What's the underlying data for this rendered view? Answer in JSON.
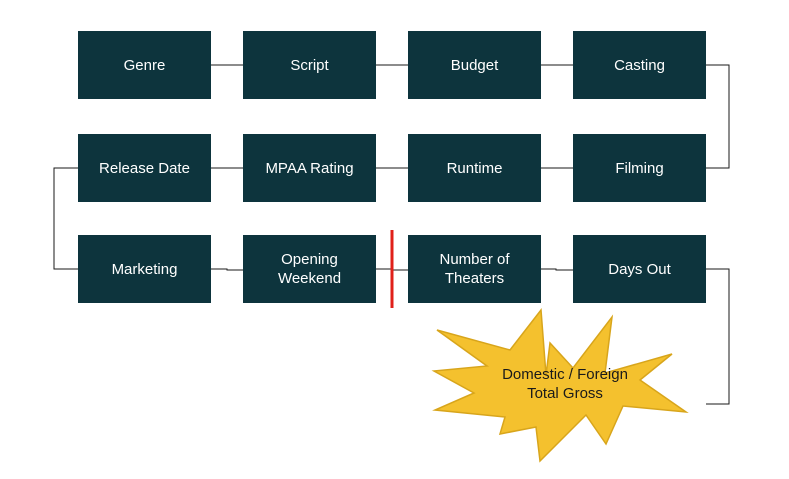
{
  "diagram": {
    "nodes": [
      {
        "id": "genre",
        "label": "Genre"
      },
      {
        "id": "script",
        "label": "Script"
      },
      {
        "id": "budget",
        "label": "Budget"
      },
      {
        "id": "casting",
        "label": "Casting"
      },
      {
        "id": "filming",
        "label": "Filming"
      },
      {
        "id": "runtime",
        "label": "Runtime"
      },
      {
        "id": "mpaa-rating",
        "label": "MPAA Rating"
      },
      {
        "id": "release-date",
        "label": "Release Date"
      },
      {
        "id": "marketing",
        "label": "Marketing"
      },
      {
        "id": "opening-weekend",
        "label": "Opening\nWeekend"
      },
      {
        "id": "number-of-theaters",
        "label": "Number of\nTheaters"
      },
      {
        "id": "days-out",
        "label": "Days Out"
      }
    ],
    "outcome": {
      "line1": "Domestic / Foreign",
      "line2": "Total Gross"
    },
    "edges": [
      [
        "genre",
        "script"
      ],
      [
        "script",
        "budget"
      ],
      [
        "budget",
        "casting"
      ],
      [
        "casting",
        "filming"
      ],
      [
        "filming",
        "runtime"
      ],
      [
        "runtime",
        "mpaa-rating"
      ],
      [
        "mpaa-rating",
        "release-date"
      ],
      [
        "release-date",
        "marketing"
      ],
      [
        "marketing",
        "opening-weekend"
      ],
      [
        "opening-weekend",
        "number-of-theaters"
      ],
      [
        "number-of-theaters",
        "days-out"
      ],
      [
        "days-out",
        "outcome"
      ]
    ],
    "colors": {
      "box_fill": "#0d343d",
      "box_text": "#ffffff",
      "connector": "#1a1a1a",
      "divider": "#e0201a",
      "burst_fill": "#f4c12e",
      "burst_stroke": "#d8a51b"
    }
  }
}
